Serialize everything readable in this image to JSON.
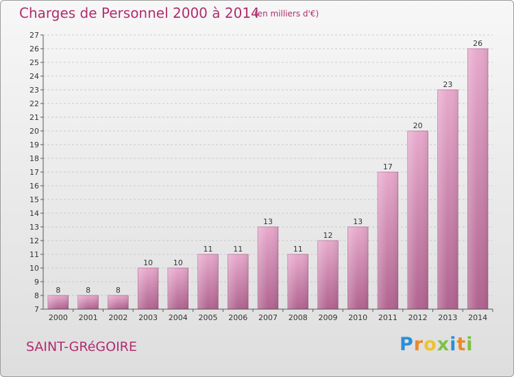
{
  "chart_data": {
    "type": "bar",
    "title": "Charges de Personnel 2000 à 2014",
    "subtitle": "(en milliers d'€)",
    "categories": [
      "2000",
      "2001",
      "2002",
      "2003",
      "2004",
      "2005",
      "2006",
      "2007",
      "2008",
      "2009",
      "2010",
      "2011",
      "2012",
      "2013",
      "2014"
    ],
    "values": [
      8,
      8,
      8,
      10,
      10,
      11,
      11,
      13,
      11,
      12,
      13,
      17,
      20,
      23,
      26
    ],
    "ylim": [
      7,
      27
    ],
    "yticks": [
      7,
      8,
      9,
      10,
      11,
      12,
      13,
      14,
      15,
      16,
      17,
      18,
      19,
      20,
      21,
      22,
      23,
      24,
      25,
      26,
      27
    ],
    "grid": true,
    "bar_color": "#d98db5"
  },
  "footer": {
    "commune": "SAINT-GRéGOIRE",
    "logo_letters": [
      "P",
      "r",
      "o",
      "x",
      "i",
      "t",
      "i"
    ],
    "logo_colors": [
      "#2a8fd6",
      "#e8892b",
      "#f0c22e",
      "#7cc242",
      "#2a8fd6",
      "#e8892b",
      "#7cc242"
    ]
  }
}
